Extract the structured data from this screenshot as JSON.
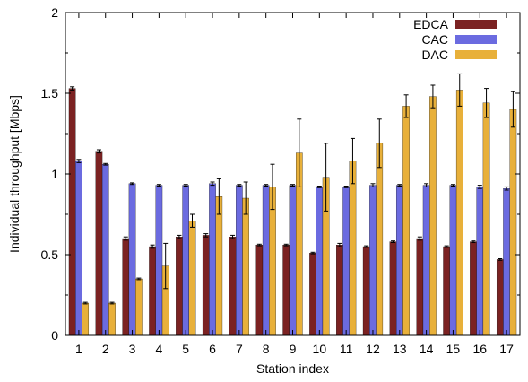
{
  "chart_data": {
    "type": "bar",
    "xlabel": "Station index",
    "ylabel": "Individual throughput [Mbps]",
    "ylim": [
      0,
      2
    ],
    "yticks": [
      "0",
      "0.5",
      "1",
      "1.5",
      "2"
    ],
    "categories": [
      "1",
      "2",
      "3",
      "4",
      "5",
      "6",
      "7",
      "8",
      "9",
      "10",
      "11",
      "12",
      "13",
      "14",
      "15",
      "16",
      "17"
    ],
    "grid": false,
    "legend_position": "top-right",
    "series": [
      {
        "name": "EDCA",
        "color": "#7b2222",
        "values": [
          1.53,
          1.14,
          0.6,
          0.55,
          0.61,
          0.62,
          0.61,
          0.56,
          0.56,
          0.51,
          0.56,
          0.55,
          0.58,
          0.6,
          0.55,
          0.58,
          0.47
        ],
        "errors": [
          0.01,
          0.01,
          0.01,
          0.01,
          0.01,
          0.01,
          0.01,
          0.005,
          0.005,
          0.005,
          0.01,
          0.005,
          0.005,
          0.01,
          0.005,
          0.005,
          0.005
        ]
      },
      {
        "name": "CAC",
        "color": "#6b6be0",
        "values": [
          1.08,
          1.06,
          0.94,
          0.93,
          0.93,
          0.94,
          0.93,
          0.93,
          0.93,
          0.92,
          0.92,
          0.93,
          0.93,
          0.93,
          0.93,
          0.92,
          0.91
        ],
        "errors": [
          0.01,
          0.005,
          0.005,
          0.005,
          0.005,
          0.01,
          0.005,
          0.005,
          0.005,
          0.005,
          0.005,
          0.01,
          0.005,
          0.01,
          0.005,
          0.01,
          0.01
        ]
      },
      {
        "name": "DAC",
        "color": "#e8b03a",
        "values": [
          0.2,
          0.2,
          0.35,
          0.43,
          0.71,
          0.86,
          0.85,
          0.92,
          1.13,
          0.98,
          1.08,
          1.19,
          1.42,
          1.48,
          1.52,
          1.44,
          1.4
        ],
        "errors": [
          0.005,
          0.005,
          0.005,
          0.14,
          0.04,
          0.11,
          0.1,
          0.14,
          0.21,
          0.21,
          0.14,
          0.15,
          0.07,
          0.07,
          0.1,
          0.09,
          0.11
        ]
      }
    ]
  }
}
